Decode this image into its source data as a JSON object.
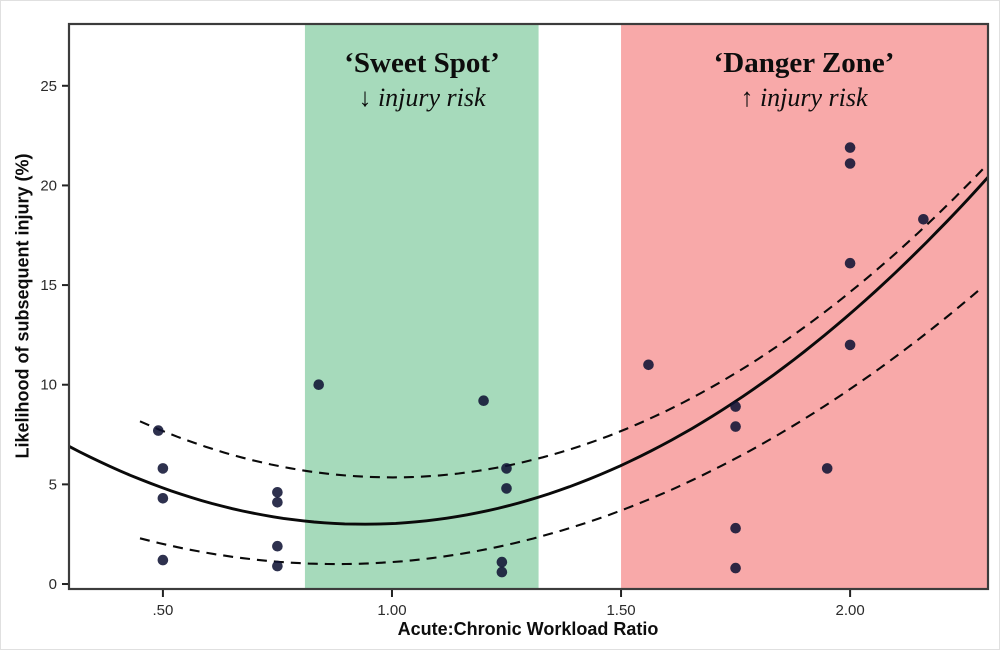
{
  "chart_data": {
    "type": "scatter",
    "title": "",
    "xlabel": "Acute:Chronic Workload Ratio",
    "ylabel": "Likelihood of subsequent injury (%)",
    "xlim": [
      0.295,
      2.301
    ],
    "ylim": [
      -0.25,
      28.1
    ],
    "grid": false,
    "legend": false,
    "x_ticks": [
      {
        "value": 0.5,
        "label": ".50"
      },
      {
        "value": 1.0,
        "label": "1.00"
      },
      {
        "value": 1.5,
        "label": "1.50"
      },
      {
        "value": 2.0,
        "label": "2.00"
      }
    ],
    "y_ticks": [
      {
        "value": 0,
        "label": "0"
      },
      {
        "value": 5,
        "label": "5"
      },
      {
        "value": 10,
        "label": "10"
      },
      {
        "value": 15,
        "label": "15"
      },
      {
        "value": 20,
        "label": "20"
      },
      {
        "value": 25,
        "label": "25"
      }
    ],
    "points": [
      [
        0.49,
        7.7
      ],
      [
        0.5,
        5.8
      ],
      [
        0.5,
        4.3
      ],
      [
        0.5,
        1.2
      ],
      [
        0.75,
        4.6
      ],
      [
        0.75,
        4.1
      ],
      [
        0.75,
        1.9
      ],
      [
        0.75,
        0.9
      ],
      [
        0.84,
        10.0
      ],
      [
        1.2,
        9.2
      ],
      [
        1.25,
        5.8
      ],
      [
        1.25,
        4.8
      ],
      [
        1.24,
        1.1
      ],
      [
        1.24,
        0.6
      ],
      [
        1.56,
        11.0
      ],
      [
        1.75,
        8.9
      ],
      [
        1.75,
        7.9
      ],
      [
        1.75,
        2.8
      ],
      [
        1.75,
        0.8
      ],
      [
        1.95,
        5.8
      ],
      [
        2.0,
        21.9
      ],
      [
        2.0,
        21.1
      ],
      [
        2.0,
        16.1
      ],
      [
        2.0,
        12.0
      ],
      [
        2.16,
        18.3
      ]
    ],
    "curves": {
      "trend": {
        "style": "solid",
        "a": 9.4,
        "h": 0.94,
        "k": 3.0,
        "x_range": [
          0.295,
          2.301
        ]
      },
      "ci_upper": {
        "style": "dashed",
        "a": 9.3,
        "h": 1.0,
        "k": 5.35,
        "x_range": [
          0.45,
          2.29
        ]
      },
      "ci_lower": {
        "style": "dashed",
        "a": 7.0,
        "h": 0.88,
        "k": 1.0,
        "x_range": [
          0.45,
          2.29
        ]
      }
    },
    "zones": [
      {
        "id": "sweet-spot",
        "range": [
          0.81,
          1.32
        ],
        "color": "#a6dabb",
        "title": "‘Sweet Spot’",
        "subtitle": "↓ injury risk"
      },
      {
        "id": "danger-zone",
        "range": [
          1.5,
          2.301
        ],
        "color": "#f8a9a9",
        "title": "‘Danger Zone’",
        "subtitle": "↑ injury risk"
      }
    ],
    "colors": {
      "point": "rgba(15,18,52,0.87)",
      "curve": "#0a0a0a",
      "frame": "#3c3c3c",
      "tick_text": "#2b2b2b"
    }
  }
}
